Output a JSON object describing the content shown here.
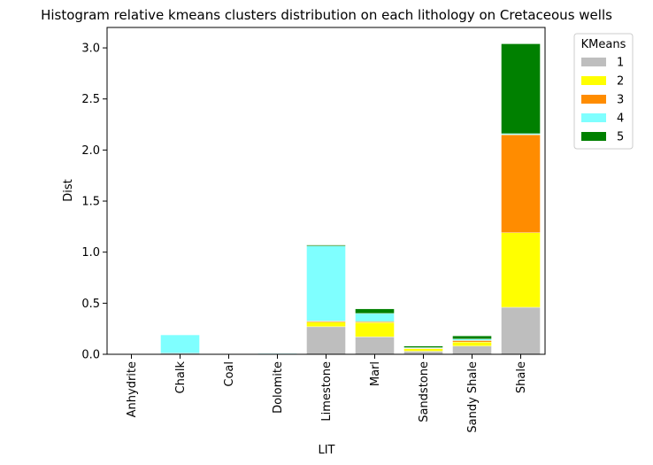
{
  "chart_data": {
    "type": "bar",
    "stacked": true,
    "title": "Histogram relative kmeans clusters distribution on each lithology on Cretaceous wells",
    "xlabel": "LIT",
    "ylabel": "Dist",
    "ylim": [
      0,
      3.2
    ],
    "yticks": [
      "0.0",
      "0.5",
      "1.0",
      "1.5",
      "2.0",
      "2.5",
      "3.0"
    ],
    "categories": [
      "Anhydrite",
      "Chalk",
      "Coal",
      "Dolomite",
      "Limestone",
      "Marl",
      "Sandstone",
      "Sandy Shale",
      "Shale"
    ],
    "legend_title": "KMeans",
    "legend_position": "outside-top-right",
    "series": [
      {
        "name": "1",
        "color": "#bebebe",
        "values": [
          0.0,
          0.01,
          0.0,
          0.005,
          0.27,
          0.17,
          0.03,
          0.08,
          0.46
        ]
      },
      {
        "name": "2",
        "color": "#ffff00",
        "values": [
          0.0,
          0.0,
          0.0,
          0.0,
          0.045,
          0.14,
          0.025,
          0.04,
          0.73
        ]
      },
      {
        "name": "3",
        "color": "#ff8c00",
        "values": [
          0.0,
          0.0,
          0.0,
          0.0,
          0.01,
          0.01,
          0.005,
          0.015,
          0.96
        ]
      },
      {
        "name": "4",
        "color": "#7fffff",
        "values": [
          0.0,
          0.18,
          0.0,
          0.005,
          0.735,
          0.08,
          0.005,
          0.015,
          0.01
        ]
      },
      {
        "name": "5",
        "color": "#008000",
        "values": [
          0.0,
          0.0,
          0.0,
          0.0,
          0.01,
          0.045,
          0.015,
          0.03,
          0.88
        ]
      }
    ]
  }
}
